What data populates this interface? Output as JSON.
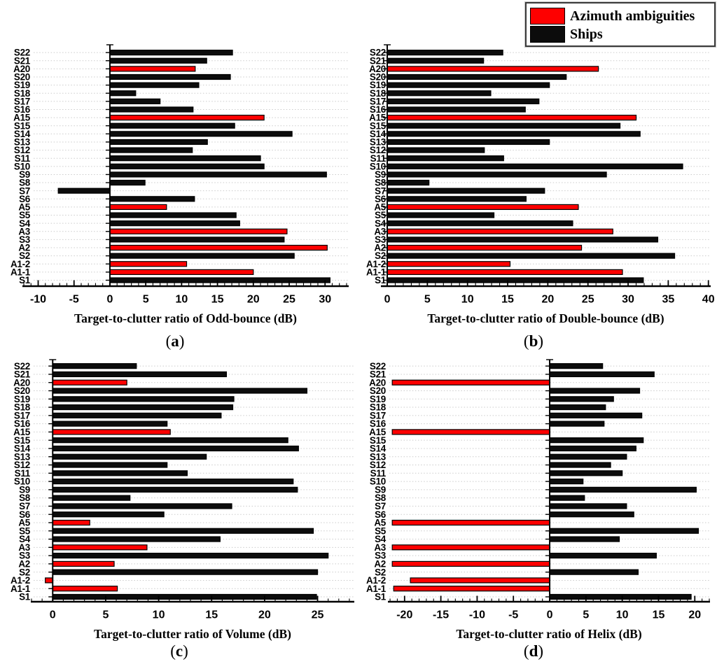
{
  "legend": {
    "items": [
      {
        "label": "Azimuth ambiguities",
        "color": "#fe0000"
      },
      {
        "label": "Ships",
        "color": "#0c0c0c"
      }
    ],
    "position": "top-right"
  },
  "colors": {
    "azimuth_bar": "#fe0000",
    "ship_bar": "#0c0c0c",
    "bar_outline": "#000000",
    "gridline": "#cbcbcb",
    "axis": "#000000"
  },
  "chart_data": [
    {
      "id": "a",
      "type": "bar",
      "orientation": "horizontal",
      "xlabel": "Target-to-clutter ratio of Odd-bounce (dB)",
      "sublabel": {
        "open": "(",
        "letter": "a",
        "close": ")"
      },
      "xlim": [
        -12.1,
        33.2
      ],
      "x_major_ticks": [
        -10,
        -5,
        0,
        5,
        10,
        15,
        20,
        25,
        30
      ],
      "x_minor_step": 1,
      "grid": "dotted-horizontal",
      "categories": [
        "S1",
        "A1-1",
        "A1-2",
        "S2",
        "A2",
        "S3",
        "A3",
        "S4",
        "S5",
        "A5",
        "S6",
        "S7",
        "S8",
        "S9",
        "S10",
        "S11",
        "S12",
        "S13",
        "S14",
        "S15",
        "A15",
        "S16",
        "S17",
        "S18",
        "S19",
        "S20",
        "A20",
        "S21",
        "S22"
      ],
      "values": [
        30.7,
        20.0,
        10.7,
        25.7,
        30.3,
        24.3,
        24.7,
        18.1,
        17.6,
        7.9,
        11.8,
        -7.2,
        4.9,
        30.2,
        21.5,
        21.0,
        11.5,
        13.6,
        25.4,
        17.4,
        21.5,
        11.6,
        7.0,
        3.6,
        12.4,
        16.8,
        11.9,
        13.5,
        17.1
      ]
    },
    {
      "id": "b",
      "type": "bar",
      "orientation": "horizontal",
      "xlabel": "Target-to-clutter ratio of Double-bounce (dB)",
      "sublabel": {
        "open": "(",
        "letter": "b",
        "close": ")"
      },
      "xlim": [
        -0.7,
        40.2
      ],
      "x_major_ticks": [
        0,
        5,
        10,
        15,
        20,
        25,
        30,
        35,
        40
      ],
      "x_minor_step": 1,
      "grid": "dotted-horizontal",
      "categories": [
        "S1",
        "A1-1",
        "A1-2",
        "S2",
        "A2",
        "S3",
        "A3",
        "S4",
        "S5",
        "A5",
        "S6",
        "S7",
        "S8",
        "S9",
        "S10",
        "S11",
        "S12",
        "S13",
        "S14",
        "S15",
        "A15",
        "S16",
        "S17",
        "S18",
        "S19",
        "S20",
        "A20",
        "S21",
        "S22"
      ],
      "values": [
        31.9,
        29.3,
        15.3,
        35.8,
        24.2,
        33.7,
        28.1,
        23.1,
        13.3,
        23.8,
        17.3,
        19.6,
        5.2,
        27.3,
        36.8,
        14.5,
        12.1,
        20.2,
        31.5,
        29.0,
        31.0,
        17.2,
        18.9,
        12.9,
        20.2,
        22.3,
        26.3,
        12.0,
        14.4
      ]
    },
    {
      "id": "c",
      "type": "bar",
      "orientation": "horizontal",
      "xlabel": "Target-to-clutter ratio of Volume (dB)",
      "sublabel": {
        "open": "(",
        "letter": "c",
        "close": ")"
      },
      "xlim": [
        -2.0,
        28.4
      ],
      "x_major_ticks": [
        0,
        5,
        10,
        15,
        20,
        25
      ],
      "x_minor_step": 1,
      "grid": "dotted-horizontal",
      "categories": [
        "S1",
        "A1-1",
        "A1-2",
        "S2",
        "A2",
        "S3",
        "A3",
        "S4",
        "S5",
        "A5",
        "S6",
        "S7",
        "S8",
        "S9",
        "S10",
        "S11",
        "S12",
        "S13",
        "S14",
        "S15",
        "A15",
        "S16",
        "S17",
        "S18",
        "S19",
        "S20",
        "A20",
        "S21",
        "S22"
      ],
      "values": [
        24.9,
        6.1,
        -0.7,
        25.0,
        5.8,
        26.0,
        8.9,
        15.8,
        24.6,
        3.5,
        10.5,
        16.9,
        7.3,
        23.1,
        22.7,
        12.7,
        10.8,
        14.5,
        23.2,
        22.2,
        11.1,
        10.8,
        15.9,
        17.0,
        17.1,
        24.0,
        7.0,
        16.4,
        7.9
      ]
    },
    {
      "id": "d",
      "type": "bar",
      "orientation": "horizontal",
      "xlabel": "Target-to-clutter ratio of Helix (dB)",
      "sublabel": {
        "open": "(",
        "letter": "d",
        "close": ")"
      },
      "xlim": [
        -22.2,
        22.0
      ],
      "x_major_ticks": [
        -20,
        -15,
        -10,
        -5,
        0,
        5,
        10,
        15,
        20
      ],
      "x_minor_step": 1,
      "grid": "dotted-horizontal",
      "categories": [
        "S1",
        "A1-1",
        "A1-2",
        "S2",
        "A2",
        "S3",
        "A3",
        "S4",
        "S5",
        "A5",
        "S6",
        "S7",
        "S8",
        "S9",
        "S10",
        "S11",
        "S12",
        "S13",
        "S14",
        "S15",
        "A15",
        "S16",
        "S17",
        "S18",
        "S19",
        "S20",
        "A20",
        "S21",
        "S22"
      ],
      "values": [
        19.5,
        -21.5,
        -19.2,
        12.2,
        -21.7,
        14.7,
        -21.7,
        9.6,
        20.5,
        -21.7,
        11.6,
        10.6,
        4.8,
        20.2,
        4.6,
        10.0,
        8.4,
        10.6,
        11.9,
        12.9,
        -21.7,
        7.5,
        12.7,
        7.7,
        8.8,
        12.4,
        -21.7,
        14.4,
        7.3
      ]
    }
  ]
}
